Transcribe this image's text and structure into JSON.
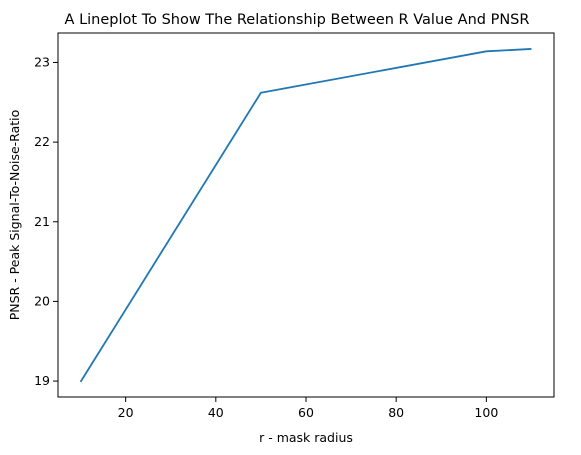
{
  "chart_data": {
    "type": "line",
    "title": "A Lineplot To Show The Relationship Between R Value And PNSR",
    "xlabel": "r - mask radius",
    "ylabel": "PNSR - Peak Signal-To-Noise-Ratio",
    "x": [
      10,
      50,
      100,
      110
    ],
    "series": [
      {
        "values": [
          18.99,
          22.62,
          23.14,
          23.17
        ],
        "color": "#1f77b4"
      }
    ],
    "xlim": [
      5,
      115
    ],
    "ylim": [
      18.8,
      23.37
    ],
    "x_ticks": [
      20,
      40,
      60,
      80,
      100
    ],
    "y_ticks": [
      19,
      20,
      21,
      22,
      23
    ],
    "x_tick_labels": [
      "20",
      "40",
      "60",
      "80",
      "100"
    ],
    "y_tick_labels": [
      "19",
      "20",
      "21",
      "22",
      "23"
    ],
    "grid": false,
    "legend": "none"
  }
}
